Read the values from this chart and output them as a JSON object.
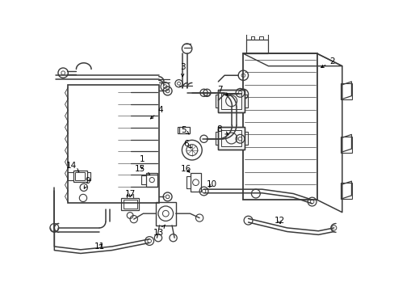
{
  "bg_color": "#ffffff",
  "line_color": "#3a3a3a",
  "lw": 0.85,
  "figsize": [
    4.89,
    3.6
  ],
  "dpi": 100
}
